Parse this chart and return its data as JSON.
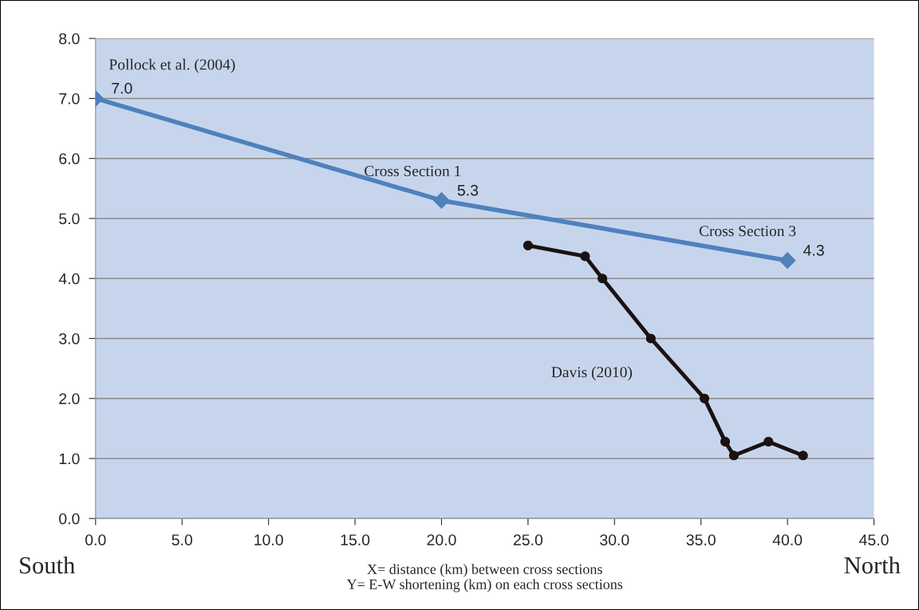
{
  "chart_data": {
    "type": "line",
    "xlabel": "X= distance (km) between cross sections\nY= E-W shortening (km) on each cross sections",
    "series": [
      {
        "name": "Pollock et al. (2004)",
        "color": "#4f81bd",
        "marker": "diamond",
        "x": [
          0,
          20,
          40
        ],
        "values": [
          7.0,
          5.3,
          4.3
        ],
        "value_labels": [
          "7.0",
          "5.3",
          "4.3"
        ]
      },
      {
        "name": "Davis (2010)",
        "color": "#1a1212",
        "marker": "circle",
        "x": [
          25.0,
          28.3,
          29.3,
          32.1,
          35.2,
          36.4,
          36.9,
          38.9,
          40.9
        ],
        "values": [
          4.55,
          4.37,
          4.0,
          3.0,
          2.0,
          1.28,
          1.05,
          1.28,
          1.05
        ]
      }
    ],
    "annotations": [
      {
        "text": "Cross Section 1",
        "x": 20,
        "y": 5.3
      },
      {
        "text": "Cross Section 3",
        "x": 40,
        "y": 4.3
      },
      "South",
      "North"
    ],
    "xlim": [
      0,
      45
    ],
    "ylim": [
      0,
      8
    ],
    "xticks": [
      {
        "value": 0,
        "label": "0.0"
      },
      {
        "value": 5,
        "label": "5.0"
      },
      {
        "value": 10,
        "label": "10.0"
      },
      {
        "value": 15,
        "label": "15.0"
      },
      {
        "value": 20,
        "label": "20.0"
      },
      {
        "value": 25,
        "label": "25.0"
      },
      {
        "value": 30,
        "label": "30.0"
      },
      {
        "value": 35,
        "label": "35.0"
      },
      {
        "value": 40,
        "label": "40.0"
      },
      {
        "value": 45,
        "label": "45.0"
      }
    ],
    "yticks": [
      {
        "value": 0,
        "label": "0.0"
      },
      {
        "value": 1,
        "label": "1.0"
      },
      {
        "value": 2,
        "label": "2.0"
      },
      {
        "value": 3,
        "label": "3.0"
      },
      {
        "value": 4,
        "label": "4.0"
      },
      {
        "value": 5,
        "label": "5.0"
      },
      {
        "value": 6,
        "label": "6.0"
      },
      {
        "value": 7,
        "label": "7.0"
      },
      {
        "value": 8,
        "label": "8.0"
      }
    ],
    "grid": "y",
    "legend": false
  }
}
